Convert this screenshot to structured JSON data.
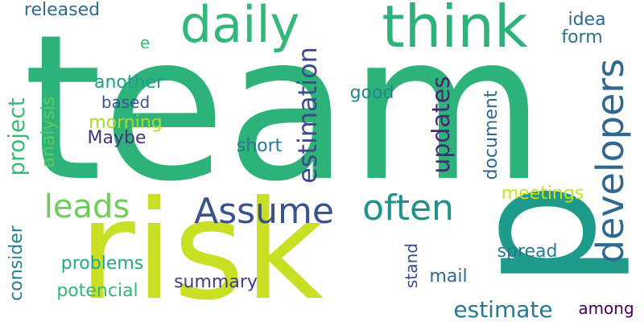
{
  "words": [
    {
      "text": "team",
      "color": "#2db37a",
      "orientation": "horizontal"
    },
    {
      "text": "risk",
      "color": "#c8df23",
      "orientation": "horizontal"
    },
    {
      "text": "p",
      "color": "#1e9b8a",
      "orientation": "vertical"
    },
    {
      "text": "think",
      "color": "#2db37a",
      "orientation": "horizontal"
    },
    {
      "text": "daily",
      "color": "#35b779",
      "orientation": "horizontal"
    },
    {
      "text": "developers",
      "color": "#31688e",
      "orientation": "vertical"
    },
    {
      "text": "Assume",
      "color": "#3b528b",
      "orientation": "horizontal"
    },
    {
      "text": "often",
      "color": "#21918c",
      "orientation": "horizontal"
    },
    {
      "text": "leads",
      "color": "#6ccd5a",
      "orientation": "horizontal"
    },
    {
      "text": "estimation",
      "color": "#3e4a89",
      "orientation": "vertical"
    },
    {
      "text": "updates",
      "color": "#482777",
      "orientation": "vertical"
    },
    {
      "text": "project",
      "color": "#3aba76",
      "orientation": "vertical"
    },
    {
      "text": "estimate",
      "color": "#2a788e",
      "orientation": "horizontal"
    },
    {
      "text": "released",
      "color": "#31688e",
      "orientation": "horizontal"
    },
    {
      "text": "idea",
      "color": "#31688e",
      "orientation": "horizontal"
    },
    {
      "text": "form",
      "color": "#2c728e",
      "orientation": "horizontal"
    },
    {
      "text": "e",
      "color": "#3aba76",
      "orientation": "horizontal"
    },
    {
      "text": "another",
      "color": "#1f9e89",
      "orientation": "horizontal"
    },
    {
      "text": "based",
      "color": "#3b528b",
      "orientation": "horizontal"
    },
    {
      "text": "morning",
      "color": "#a8db34",
      "orientation": "horizontal"
    },
    {
      "text": "Maybe",
      "color": "#46337e",
      "orientation": "horizontal"
    },
    {
      "text": "good",
      "color": "#25848e",
      "orientation": "horizontal"
    },
    {
      "text": "short",
      "color": "#2a788e",
      "orientation": "horizontal"
    },
    {
      "text": "analysis",
      "color": "#5ec962",
      "orientation": "vertical"
    },
    {
      "text": "document",
      "color": "#31688e",
      "orientation": "vertical"
    },
    {
      "text": "meetings",
      "color": "#c8df23",
      "orientation": "horizontal"
    },
    {
      "text": "consider",
      "color": "#277f8e",
      "orientation": "vertical"
    },
    {
      "text": "problems",
      "color": "#22a884",
      "orientation": "horizontal"
    },
    {
      "text": "potencial",
      "color": "#35b779",
      "orientation": "horizontal"
    },
    {
      "text": "summary",
      "color": "#443a83",
      "orientation": "horizontal"
    },
    {
      "text": "stand",
      "color": "#3e4a89",
      "orientation": "vertical"
    },
    {
      "text": "mail",
      "color": "#31688e",
      "orientation": "horizontal"
    },
    {
      "text": "spread",
      "color": "#2a788e",
      "orientation": "horizontal"
    },
    {
      "text": "among",
      "color": "#440154",
      "orientation": "horizontal"
    }
  ]
}
